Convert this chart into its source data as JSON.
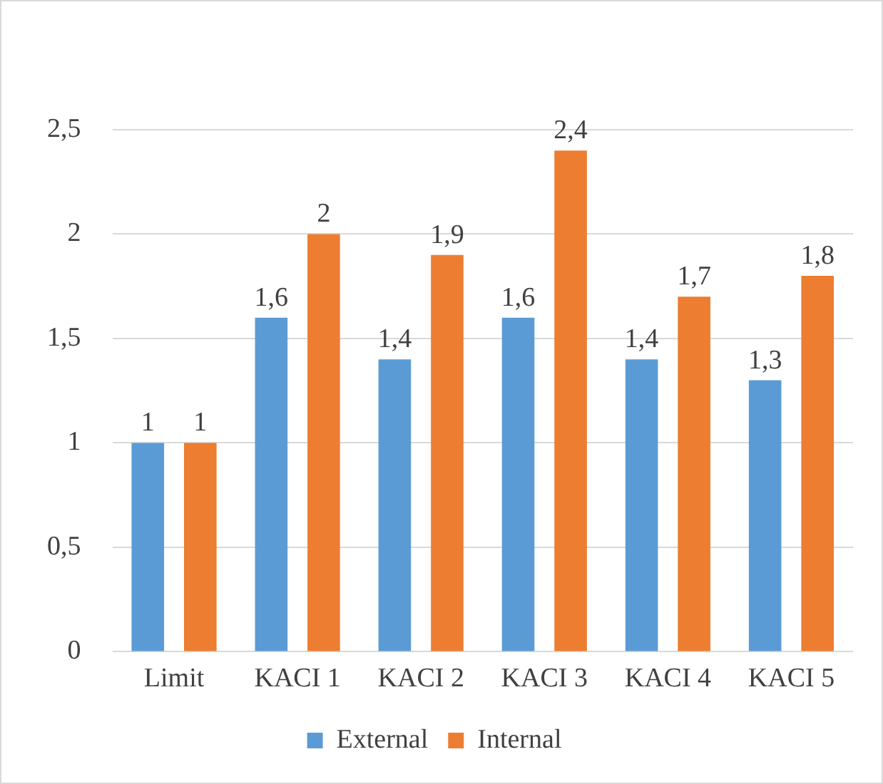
{
  "chart_data": {
    "type": "bar",
    "categories": [
      "Limit",
      "KACI 1",
      "KACI 2",
      "KACI 3",
      "KACI 4",
      "KACI 5"
    ],
    "series": [
      {
        "name": "External",
        "color": "#5b9bd5",
        "values": [
          1,
          1.6,
          1.4,
          1.6,
          1.4,
          1.3
        ],
        "value_labels": [
          "1",
          "1,6",
          "1,4",
          "1,6",
          "1,4",
          "1,3"
        ]
      },
      {
        "name": "Internal",
        "color": "#ed7d31",
        "values": [
          1,
          2,
          1.9,
          2.4,
          1.7,
          1.8
        ],
        "value_labels": [
          "1",
          "2",
          "1,9",
          "2,4",
          "1,7",
          "1,8"
        ]
      }
    ],
    "ylim": [
      0,
      2.5
    ],
    "yticks": [
      0,
      {
        "value": 0.5,
        "label": "0,5"
      },
      1,
      {
        "value": 1.5,
        "label": "1,5"
      },
      2,
      {
        "value": 2.5,
        "label": "2,5"
      }
    ],
    "grid": "y",
    "legend": "bottom"
  }
}
